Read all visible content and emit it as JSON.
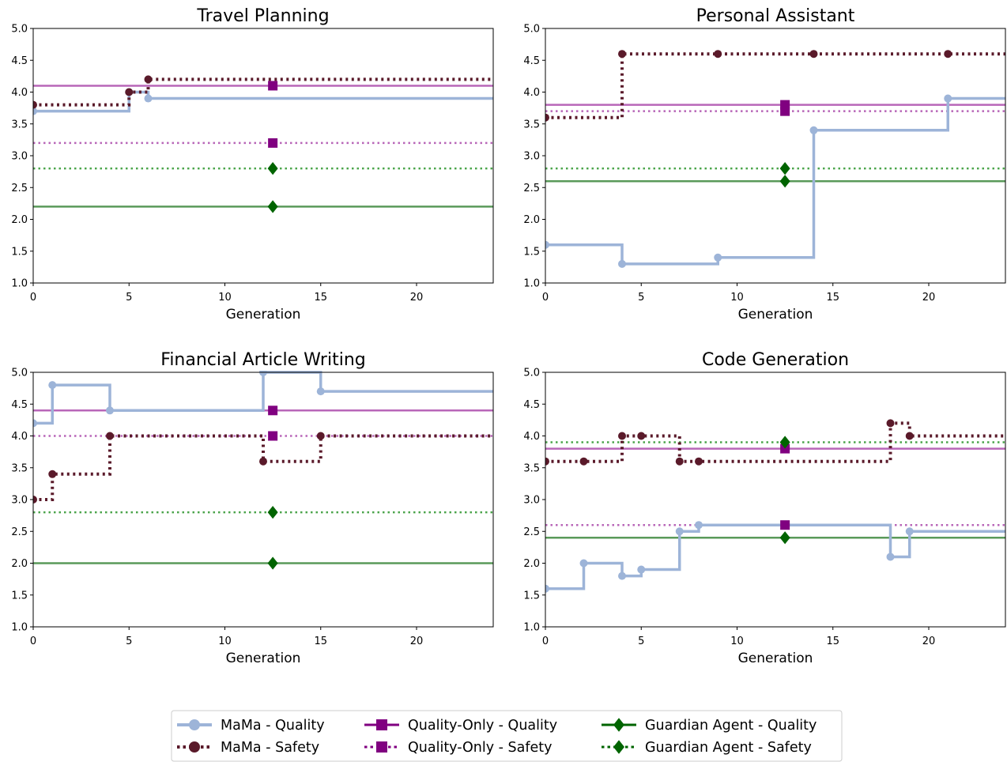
{
  "legend": {
    "entries": [
      {
        "label": "MaMa - Quality",
        "color": "#9db4d8",
        "style": "solid",
        "marker": "circle"
      },
      {
        "label": "MaMa - Safety",
        "color": "#5a1a2a",
        "style": "dotted",
        "marker": "circle"
      },
      {
        "label": "Quality-Only - Quality",
        "color": "#800080",
        "style": "solid",
        "marker": "square"
      },
      {
        "label": "Quality-Only - Safety",
        "color": "#800080",
        "style": "dotted",
        "marker": "square"
      },
      {
        "label": "Guardian Agent - Quality",
        "color": "#006400",
        "style": "solid",
        "marker": "diamond"
      },
      {
        "label": "Guardian Agent - Safety",
        "color": "#006400",
        "style": "dotted",
        "marker": "diamond"
      }
    ]
  },
  "chart_data": [
    {
      "type": "line",
      "title": "Travel Planning",
      "xlabel": "Generation",
      "ylabel": "",
      "xlim": [
        0,
        24
      ],
      "ylim": [
        1.0,
        5.0
      ],
      "xticks": [
        "0",
        "5",
        "10",
        "15",
        "20"
      ],
      "yticks": [
        "1.0",
        "1.5",
        "2.0",
        "2.5",
        "3.0",
        "3.5",
        "4.0",
        "4.5",
        "5.0"
      ],
      "mama_quality": {
        "x": [
          0,
          5,
          6
        ],
        "y": [
          3.7,
          4.0,
          3.9
        ]
      },
      "mama_safety": {
        "x": [
          0,
          5,
          6
        ],
        "y": [
          3.8,
          4.0,
          4.2
        ]
      },
      "quality_only_quality": 4.1,
      "quality_only_safety": 3.2,
      "guardian_quality": 2.2,
      "guardian_safety": 2.8,
      "marker_x": 12.5
    },
    {
      "type": "line",
      "title": "Personal Assistant",
      "xlabel": "Generation",
      "ylabel": "",
      "xlim": [
        0,
        24
      ],
      "ylim": [
        1.0,
        5.0
      ],
      "xticks": [
        "0",
        "5",
        "10",
        "15",
        "20"
      ],
      "yticks": [
        "1.0",
        "1.5",
        "2.0",
        "2.5",
        "3.0",
        "3.5",
        "4.0",
        "4.5",
        "5.0"
      ],
      "mama_quality": {
        "x": [
          0,
          4,
          9,
          14,
          21
        ],
        "y": [
          1.6,
          1.3,
          1.4,
          3.4,
          3.9
        ]
      },
      "mama_safety": {
        "x": [
          0,
          4,
          9,
          14,
          21
        ],
        "y": [
          3.6,
          4.6,
          4.6,
          4.6,
          4.6
        ]
      },
      "quality_only_quality": 3.8,
      "quality_only_safety": 3.7,
      "guardian_quality": 2.6,
      "guardian_safety": 2.8,
      "marker_x": 12.5
    },
    {
      "type": "line",
      "title": "Financial Article Writing",
      "xlabel": "Generation",
      "ylabel": "",
      "xlim": [
        0,
        24
      ],
      "ylim": [
        1.0,
        5.0
      ],
      "xticks": [
        "0",
        "5",
        "10",
        "15",
        "20"
      ],
      "yticks": [
        "1.0",
        "1.5",
        "2.0",
        "2.5",
        "3.0",
        "3.5",
        "4.0",
        "4.5",
        "5.0"
      ],
      "mama_quality": {
        "x": [
          0,
          1,
          4,
          12,
          15
        ],
        "y": [
          4.2,
          4.8,
          4.4,
          5.0,
          4.7
        ]
      },
      "mama_safety": {
        "x": [
          0,
          1,
          4,
          12,
          15
        ],
        "y": [
          3.0,
          3.4,
          4.0,
          3.6,
          4.0
        ]
      },
      "quality_only_quality": 4.4,
      "quality_only_safety": 4.0,
      "guardian_quality": 2.0,
      "guardian_safety": 2.8,
      "marker_x": 12.5
    },
    {
      "type": "line",
      "title": "Code Generation",
      "xlabel": "Generation",
      "ylabel": "",
      "xlim": [
        0,
        24
      ],
      "ylim": [
        1.0,
        5.0
      ],
      "xticks": [
        "0",
        "5",
        "10",
        "15",
        "20"
      ],
      "yticks": [
        "1.0",
        "1.5",
        "2.0",
        "2.5",
        "3.0",
        "3.5",
        "4.0",
        "4.5",
        "5.0"
      ],
      "mama_quality": {
        "x": [
          0,
          2,
          4,
          5,
          7,
          8,
          18,
          19
        ],
        "y": [
          1.6,
          2.0,
          1.8,
          1.9,
          2.5,
          2.6,
          2.1,
          2.5
        ]
      },
      "mama_safety": {
        "x": [
          0,
          2,
          4,
          5,
          7,
          8,
          18,
          19
        ],
        "y": [
          3.6,
          3.6,
          4.0,
          4.0,
          3.6,
          3.6,
          4.2,
          4.0
        ]
      },
      "quality_only_quality": 3.8,
      "quality_only_safety": 2.6,
      "guardian_quality": 2.4,
      "guardian_safety": 3.9,
      "marker_x": 12.5
    }
  ]
}
